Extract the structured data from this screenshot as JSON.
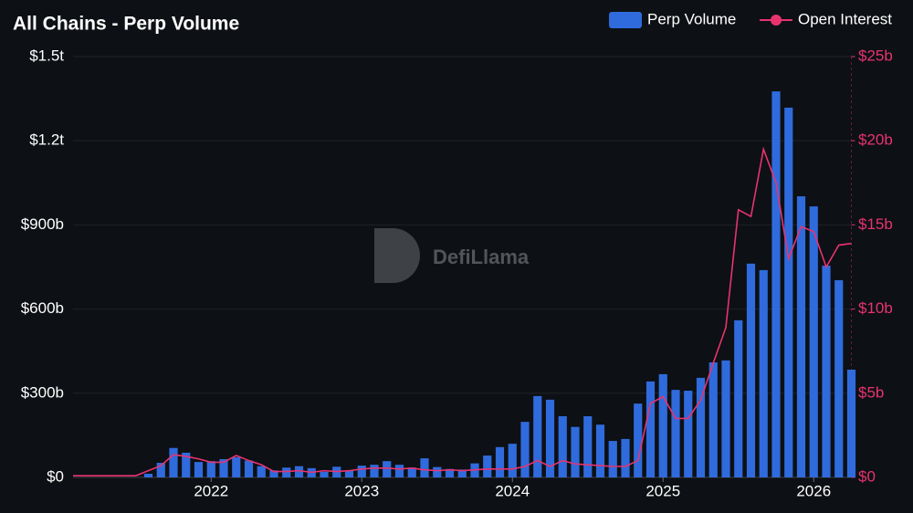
{
  "chart_data": {
    "type": "bar",
    "title": "All Chains - Perp Volume",
    "watermark": "DefiLlama",
    "categories": [
      null,
      null,
      null,
      null,
      null,
      null,
      null,
      null,
      null,
      null,
      null,
      "2022",
      null,
      null,
      null,
      null,
      null,
      null,
      null,
      null,
      null,
      null,
      null,
      "2023",
      null,
      null,
      null,
      null,
      null,
      null,
      null,
      null,
      null,
      null,
      null,
      "2024",
      null,
      null,
      null,
      null,
      null,
      null,
      null,
      null,
      null,
      null,
      null,
      "2025",
      null,
      null,
      null,
      null,
      null,
      null,
      null,
      null,
      null,
      null,
      null,
      "2026",
      null,
      null,
      null
    ],
    "series": [
      {
        "name": "Perp Volume",
        "type": "bar",
        "color": "#2f6bdc",
        "values": [
          0,
          0,
          0,
          0,
          0,
          0,
          13,
          52,
          105,
          88,
          55,
          58,
          65,
          72,
          60,
          40,
          25,
          35,
          40,
          33,
          20,
          38,
          25,
          42,
          45,
          58,
          45,
          35,
          68,
          37,
          30,
          28,
          50,
          78,
          108,
          120,
          198,
          290,
          277,
          218,
          180,
          218,
          188,
          130,
          137,
          263,
          342,
          368,
          312,
          309,
          355,
          410,
          417,
          560,
          762,
          739,
          1376,
          1318,
          1002,
          966,
          755,
          703,
          384
        ]
      },
      {
        "name": "Open Interest",
        "type": "line",
        "axis": "y2",
        "color": "#e8336f",
        "values": [
          0.1,
          0.1,
          0.1,
          0.1,
          0.1,
          0.1,
          0.4,
          0.7,
          1.35,
          1.25,
          1.1,
          0.9,
          0.9,
          1.3,
          1.0,
          0.75,
          0.35,
          0.35,
          0.4,
          0.3,
          0.4,
          0.35,
          0.4,
          0.5,
          0.55,
          0.55,
          0.5,
          0.55,
          0.45,
          0.4,
          0.45,
          0.4,
          0.45,
          0.5,
          0.5,
          0.5,
          0.65,
          1.0,
          0.65,
          1.0,
          0.8,
          0.75,
          0.7,
          0.65,
          0.65,
          1.0,
          4.4,
          4.8,
          3.5,
          3.5,
          4.6,
          6.8,
          8.9,
          15.9,
          15.5,
          19.5,
          17.5,
          13.0,
          14.9,
          14.6,
          12.5,
          13.8,
          13.9
        ]
      }
    ],
    "ylim": [
      0,
      1500
    ],
    "yticks": [
      {
        "value": 0,
        "label": "$0"
      },
      {
        "value": 300,
        "label": "$300b"
      },
      {
        "value": 600,
        "label": "$600b"
      },
      {
        "value": 900,
        "label": "$900b"
      },
      {
        "value": 1200,
        "label": "$1.2t"
      },
      {
        "value": 1500,
        "label": "$1.5t"
      }
    ],
    "y2lim": [
      0,
      25
    ],
    "y2ticks": [
      {
        "value": 0,
        "label": "$0"
      },
      {
        "value": 5,
        "label": "$5b"
      },
      {
        "value": 10,
        "label": "$10b"
      },
      {
        "value": 15,
        "label": "$15b"
      },
      {
        "value": 20,
        "label": "$20b"
      },
      {
        "value": 25,
        "label": "$25b"
      }
    ],
    "grid": true,
    "legend": "top-right"
  }
}
